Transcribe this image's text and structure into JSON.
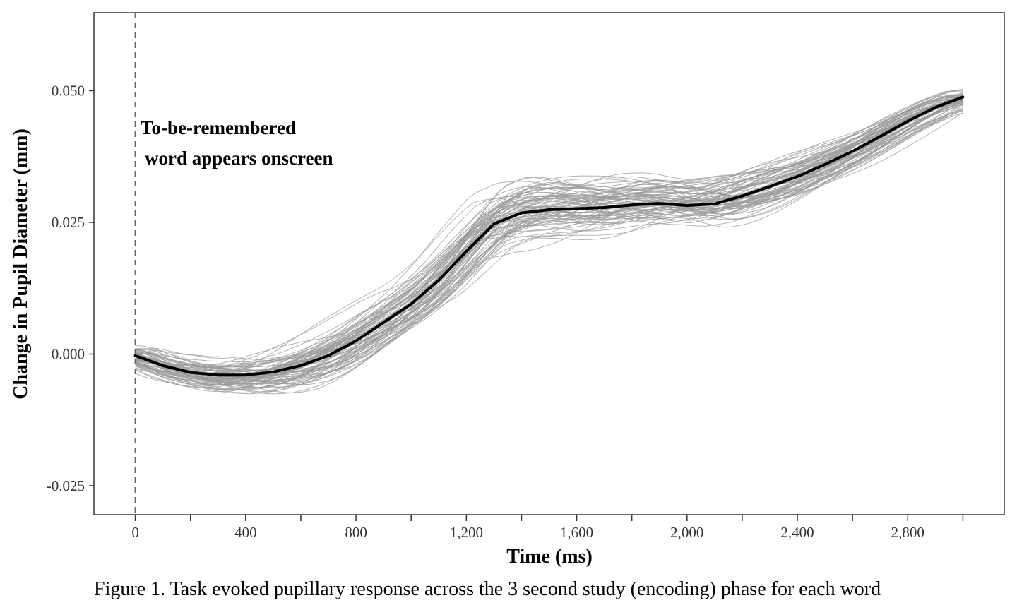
{
  "chart_data": {
    "type": "line",
    "title": "",
    "xlabel": "Time (ms)",
    "ylabel": "Change in Pupil Diameter (mm)",
    "xlim": [
      -150,
      3150
    ],
    "ylim": [
      -0.0305,
      0.0648
    ],
    "x_major_ticks": [
      0,
      400,
      800,
      1200,
      1600,
      2000,
      2400,
      2800
    ],
    "x_tick_labels": [
      "0",
      "400",
      "800",
      "1,200",
      "1,600",
      "2,000",
      "2,400",
      "2,800"
    ],
    "x_minor_ticks": [
      200,
      600,
      1000,
      1400,
      1800,
      2200,
      2600,
      3000
    ],
    "y_ticks": [
      -0.025,
      0.0,
      0.025,
      0.05
    ],
    "y_tick_labels": [
      "-0.025",
      "0.000",
      "0.025",
      "0.050"
    ],
    "grid": false,
    "legend": "none",
    "vline": {
      "x": 0,
      "style": "dashed",
      "color": "#666666"
    },
    "annotation": [
      "To-be-remembered",
      "word appears onscreen"
    ],
    "series": [
      {
        "role": "mean",
        "color": "#000000",
        "x": [
          0,
          100,
          200,
          300,
          400,
          500,
          600,
          700,
          800,
          900,
          1000,
          1100,
          1200,
          1300,
          1400,
          1500,
          1600,
          1700,
          1800,
          1900,
          2000,
          2100,
          2200,
          2300,
          2400,
          2500,
          2600,
          2700,
          2800,
          2900,
          3000
        ],
        "y": [
          -0.0003,
          -0.0022,
          -0.0035,
          -0.004,
          -0.004,
          -0.0034,
          -0.0022,
          -0.0003,
          0.0025,
          0.006,
          0.0095,
          0.014,
          0.0195,
          0.0247,
          0.0268,
          0.0274,
          0.0276,
          0.0278,
          0.0283,
          0.0286,
          0.0282,
          0.0285,
          0.03,
          0.0318,
          0.0337,
          0.036,
          0.0385,
          0.0413,
          0.0442,
          0.0468,
          0.0488
        ]
      }
    ],
    "individual_curves": {
      "count": 80,
      "color": "#9a9a9a",
      "description": "per-word curves, x 0–3000"
    },
    "caption": "Figure 1. Task evoked pupillary response across the 3 second study (encoding) phase for each word"
  }
}
